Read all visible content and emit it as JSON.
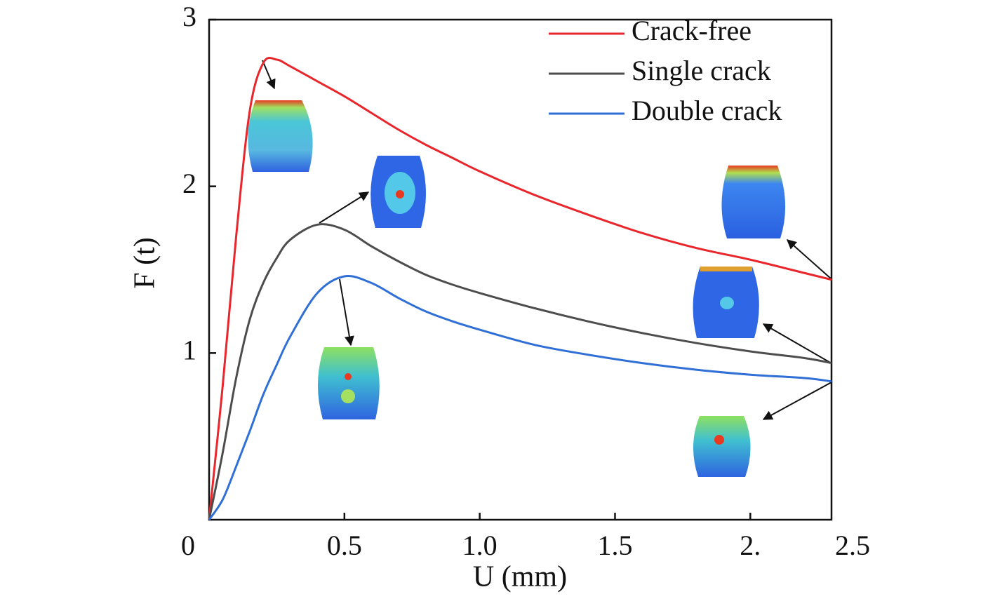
{
  "chart_data": {
    "type": "line",
    "x_label": "U (mm)",
    "y_label": "F (t)",
    "x": [
      0,
      0.05,
      0.1,
      0.15,
      0.2,
      0.25,
      0.3,
      0.4,
      0.5,
      0.6,
      0.7,
      0.8,
      0.9,
      1.0,
      1.2,
      1.4,
      1.6,
      1.8,
      2.0,
      2.2,
      2.3
    ],
    "series": [
      {
        "name": "Crack-free",
        "color": "#e8262b",
        "values": [
          0,
          0.8,
          1.7,
          2.45,
          2.74,
          2.76,
          2.72,
          2.63,
          2.54,
          2.44,
          2.34,
          2.25,
          2.17,
          2.09,
          1.95,
          1.83,
          1.72,
          1.63,
          1.56,
          1.48,
          1.44
        ]
      },
      {
        "name": "Single crack",
        "color": "#4d4d4d",
        "values": [
          0,
          0.4,
          0.85,
          1.2,
          1.42,
          1.57,
          1.68,
          1.77,
          1.74,
          1.64,
          1.55,
          1.47,
          1.41,
          1.36,
          1.27,
          1.19,
          1.12,
          1.06,
          1.01,
          0.97,
          0.94
        ]
      },
      {
        "name": "Double crack",
        "color": "#2f6fd6",
        "values": [
          0,
          0.12,
          0.32,
          0.53,
          0.75,
          0.93,
          1.1,
          1.36,
          1.46,
          1.42,
          1.33,
          1.25,
          1.19,
          1.14,
          1.05,
          0.99,
          0.94,
          0.9,
          0.87,
          0.85,
          0.83
        ]
      }
    ],
    "xlim": [
      0,
      2.3
    ],
    "xticks": [
      0,
      0.5,
      {
        "value": 1.0,
        "label": "1.0"
      },
      1.5,
      {
        "value": 2.0,
        "label": "2."
      }
    ],
    "x_end_label": "2.5",
    "ylim": [
      0,
      3
    ],
    "yticks": [
      1,
      2,
      3
    ],
    "grid": false,
    "legend": "top-right"
  }
}
